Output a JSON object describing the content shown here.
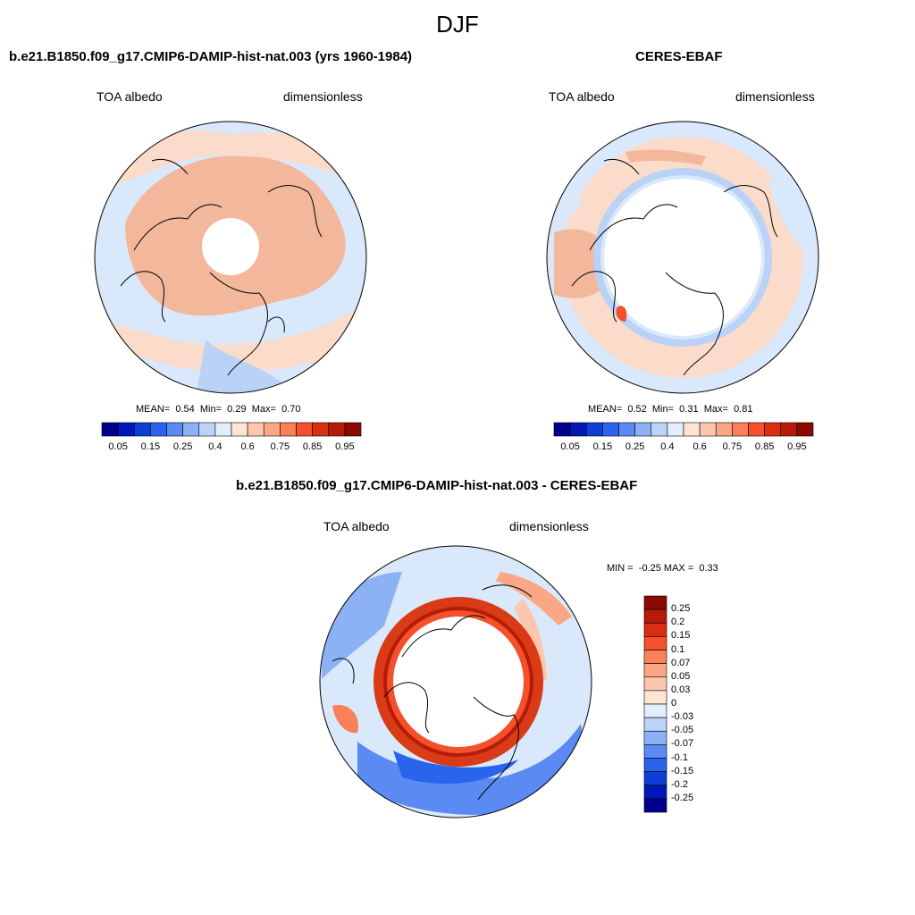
{
  "figure": {
    "title": "DJF"
  },
  "panels": {
    "model": {
      "title": "b.e21.B1850.f09_g17.CMIP6-DAMIP-hist-nat.003 (yrs 1960-1984)",
      "left_label": "TOA albedo",
      "right_label": "dimensionless",
      "stats": {
        "mean_label": "MEAN=",
        "mean": "0.54",
        "min_label": "Min=",
        "min": "0.29",
        "max_label": "Max=",
        "max": "0.70"
      }
    },
    "obs": {
      "title": "CERES-EBAF",
      "left_label": "TOA albedo",
      "right_label": "dimensionless",
      "stats": {
        "mean_label": "MEAN=",
        "mean": "0.52",
        "min_label": "Min=",
        "min": "0.31",
        "max_label": "Max=",
        "max": "0.81"
      }
    },
    "diff": {
      "title": "b.e21.B1850.f09_g17.CMIP6-DAMIP-hist-nat.003 - CERES-EBAF",
      "left_label": "TOA albedo",
      "right_label": "dimensionless",
      "stats": {
        "min_label": "MIN =",
        "min": "-0.25",
        "max_label": "MAX =",
        "max": "0.33"
      }
    }
  },
  "colorbars": {
    "abs": {
      "colors": [
        "#00008c",
        "#0018b5",
        "#0d3ed6",
        "#2a63ec",
        "#5a8af2",
        "#8db1f5",
        "#bcd3f8",
        "#e2eefc",
        "#fde4d3",
        "#fcc7ac",
        "#fba786",
        "#f98058",
        "#f3502b",
        "#da2e10",
        "#b51b08",
        "#880a00"
      ],
      "tick_labels": [
        "0.05",
        "0.15",
        "0.25",
        "0.4",
        "0.6",
        "0.75",
        "0.85",
        "0.95"
      ]
    },
    "diff": {
      "colors": [
        "#880a00",
        "#b51b08",
        "#da2e10",
        "#f3502b",
        "#f98058",
        "#fba786",
        "#fcc7ac",
        "#fde4d3",
        "#e2eefc",
        "#bcd3f8",
        "#8db1f5",
        "#5a8af2",
        "#2a63ec",
        "#0d3ed6",
        "#0018b5",
        "#00008c"
      ],
      "tick_labels": [
        "0.25",
        "0.2",
        "0.15",
        "0.1",
        "0.07",
        "0.05",
        "0.03",
        "0",
        "-0.03",
        "-0.05",
        "-0.07",
        "-0.1",
        "-0.15",
        "-0.2",
        "-0.25"
      ]
    }
  },
  "map_colors": {
    "background_blue": "#d9e8fb",
    "land_salmon": "#f3b89c",
    "light_peach": "#fbdccb",
    "mid_blue": "#b9d2f6",
    "strong_blue": "#2a63ec",
    "deep_blue": "#0d3ed6",
    "ring_red": "#d83b16",
    "ring_dark": "#b51b08",
    "coast_line": "#000000"
  }
}
